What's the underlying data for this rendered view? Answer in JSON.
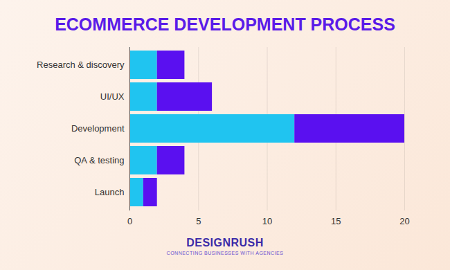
{
  "chart_data": {
    "type": "bar",
    "title": "ECOMMERCE DEVELOPMENT PROCESS",
    "orientation": "horizontal",
    "stacked": true,
    "grid": true,
    "categories": [
      "Research & discovery",
      "UI/UX",
      "Development",
      "QA & testing",
      "Launch"
    ],
    "series": [
      {
        "color": "#20c4f0",
        "values": [
          2,
          2,
          12,
          2,
          1
        ]
      },
      {
        "color": "#5a10f0",
        "values": [
          2,
          4,
          8,
          2,
          1
        ]
      }
    ],
    "xlim": [
      0,
      20
    ],
    "xticks": [
      0,
      5,
      10,
      15,
      20
    ],
    "annotations": [
      "DESIGNRUSH",
      "CONNECTING BUSINESSES WITH AGENCIES"
    ]
  }
}
